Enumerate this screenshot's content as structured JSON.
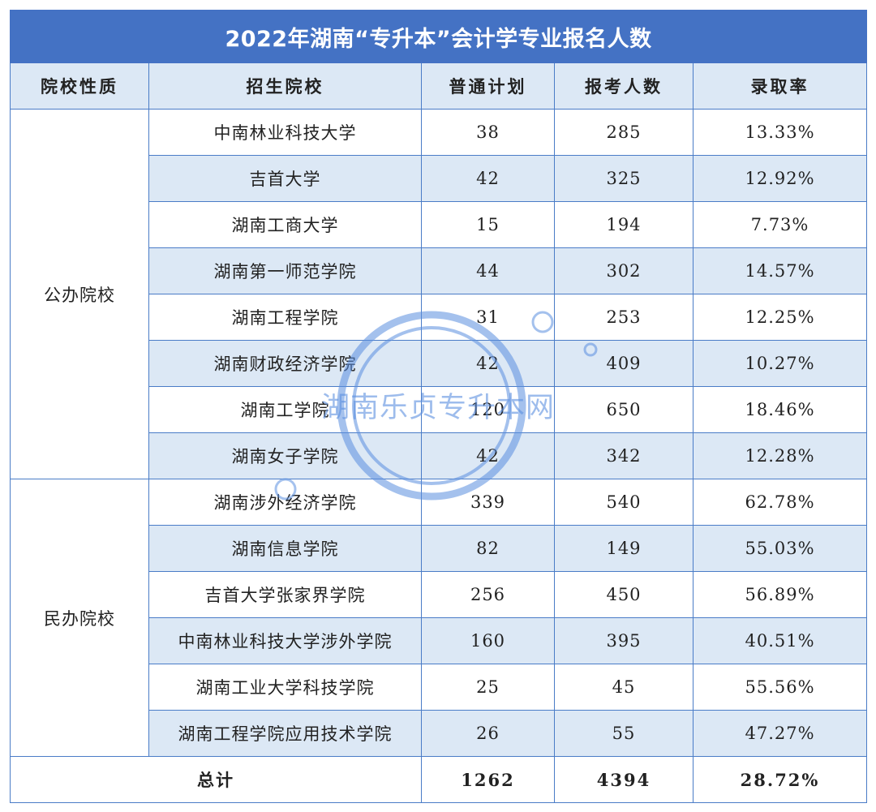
{
  "title": "2022年湖南“专升本”会计学专业报名人数",
  "headers": {
    "type": "院校性质",
    "school": "招生院校",
    "plan": "普通计划",
    "applicants": "报考人数",
    "rate": "录取率"
  },
  "groups": [
    {
      "type": "公办院校",
      "rows": [
        {
          "school": "中南林业科技大学",
          "plan": "38",
          "applicants": "285",
          "rate": "13.33%"
        },
        {
          "school": "吉首大学",
          "plan": "42",
          "applicants": "325",
          "rate": "12.92%"
        },
        {
          "school": "湖南工商大学",
          "plan": "15",
          "applicants": "194",
          "rate": "7.73%"
        },
        {
          "school": "湖南第一师范学院",
          "plan": "44",
          "applicants": "302",
          "rate": "14.57%"
        },
        {
          "school": "湖南工程学院",
          "plan": "31",
          "applicants": "253",
          "rate": "12.25%"
        },
        {
          "school": "湖南财政经济学院",
          "plan": "42",
          "applicants": "409",
          "rate": "10.27%"
        },
        {
          "school": "湖南工学院",
          "plan": "120",
          "applicants": "650",
          "rate": "18.46%"
        },
        {
          "school": "湖南女子学院",
          "plan": "42",
          "applicants": "342",
          "rate": "12.28%"
        }
      ]
    },
    {
      "type": "民办院校",
      "rows": [
        {
          "school": "湖南涉外经济学院",
          "plan": "339",
          "applicants": "540",
          "rate": "62.78%"
        },
        {
          "school": "湖南信息学院",
          "plan": "82",
          "applicants": "149",
          "rate": "55.03%"
        },
        {
          "school": "吉首大学张家界学院",
          "plan": "256",
          "applicants": "450",
          "rate": "56.89%"
        },
        {
          "school": "中南林业科技大学涉外学院",
          "plan": "160",
          "applicants": "395",
          "rate": "40.51%"
        },
        {
          "school": "湖南工业大学科技学院",
          "plan": "25",
          "applicants": "45",
          "rate": "55.56%"
        },
        {
          "school": "湖南工程学院应用技术学院",
          "plan": "26",
          "applicants": "55",
          "rate": "47.27%"
        }
      ]
    }
  ],
  "total": {
    "label": "总计",
    "plan": "1262",
    "applicants": "4394",
    "rate": "28.72%"
  },
  "watermark": {
    "text": "湖南乐贞专升本网",
    "color": "#5b8fe0"
  },
  "colors": {
    "title_bg": "#4472c4",
    "header_bg": "#dce8f5",
    "border": "#4a7cc7"
  }
}
